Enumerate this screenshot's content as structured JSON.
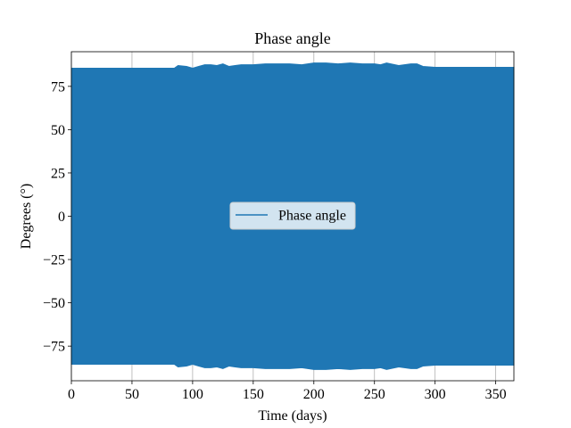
{
  "chart_data": {
    "type": "line",
    "title": "Phase angle",
    "xlabel": "Time (days)",
    "ylabel": "Degrees (°)",
    "xlim": [
      0,
      365
    ],
    "ylim": [
      -95,
      95
    ],
    "xticks": [
      0,
      50,
      100,
      150,
      200,
      250,
      300,
      350
    ],
    "yticks": [
      -75,
      -50,
      -25,
      0,
      25,
      50,
      75
    ],
    "grid": "x-only",
    "legend_placement": "center",
    "series": [
      {
        "name": "Phase angle",
        "color": "#1f77b4",
        "upper_envelope": {
          "x": [
            0,
            85,
            88,
            95,
            100,
            105,
            110,
            115,
            120,
            125,
            130,
            135,
            140,
            150,
            160,
            170,
            180,
            190,
            200,
            210,
            220,
            230,
            240,
            250,
            255,
            260,
            270,
            280,
            285,
            290,
            300,
            330,
            365
          ],
          "y": [
            85.5,
            85.5,
            87,
            86.5,
            85.5,
            86.5,
            87.5,
            87.5,
            87,
            88,
            86.5,
            87,
            87.5,
            87.5,
            88,
            88,
            88,
            87.5,
            88.5,
            88.5,
            88,
            88.5,
            88,
            88,
            87.5,
            88.5,
            87,
            88,
            88,
            86.5,
            86,
            86,
            86
          ]
        },
        "lower_envelope": {
          "x": [
            0,
            85,
            88,
            95,
            100,
            105,
            110,
            115,
            120,
            125,
            130,
            135,
            140,
            150,
            160,
            170,
            180,
            190,
            200,
            210,
            220,
            230,
            240,
            250,
            255,
            260,
            270,
            280,
            285,
            290,
            300,
            330,
            365
          ],
          "y": [
            -85.5,
            -85.5,
            -87,
            -86.5,
            -85.5,
            -86.5,
            -87.5,
            -87.5,
            -87,
            -88,
            -86.5,
            -87,
            -87.5,
            -87.5,
            -88,
            -88,
            -88,
            -87.5,
            -88.5,
            -88.5,
            -88,
            -88.5,
            -88,
            -88,
            -87.5,
            -88.5,
            -87,
            -88,
            -88,
            -86.5,
            -86,
            -86,
            -86
          ]
        }
      }
    ]
  }
}
